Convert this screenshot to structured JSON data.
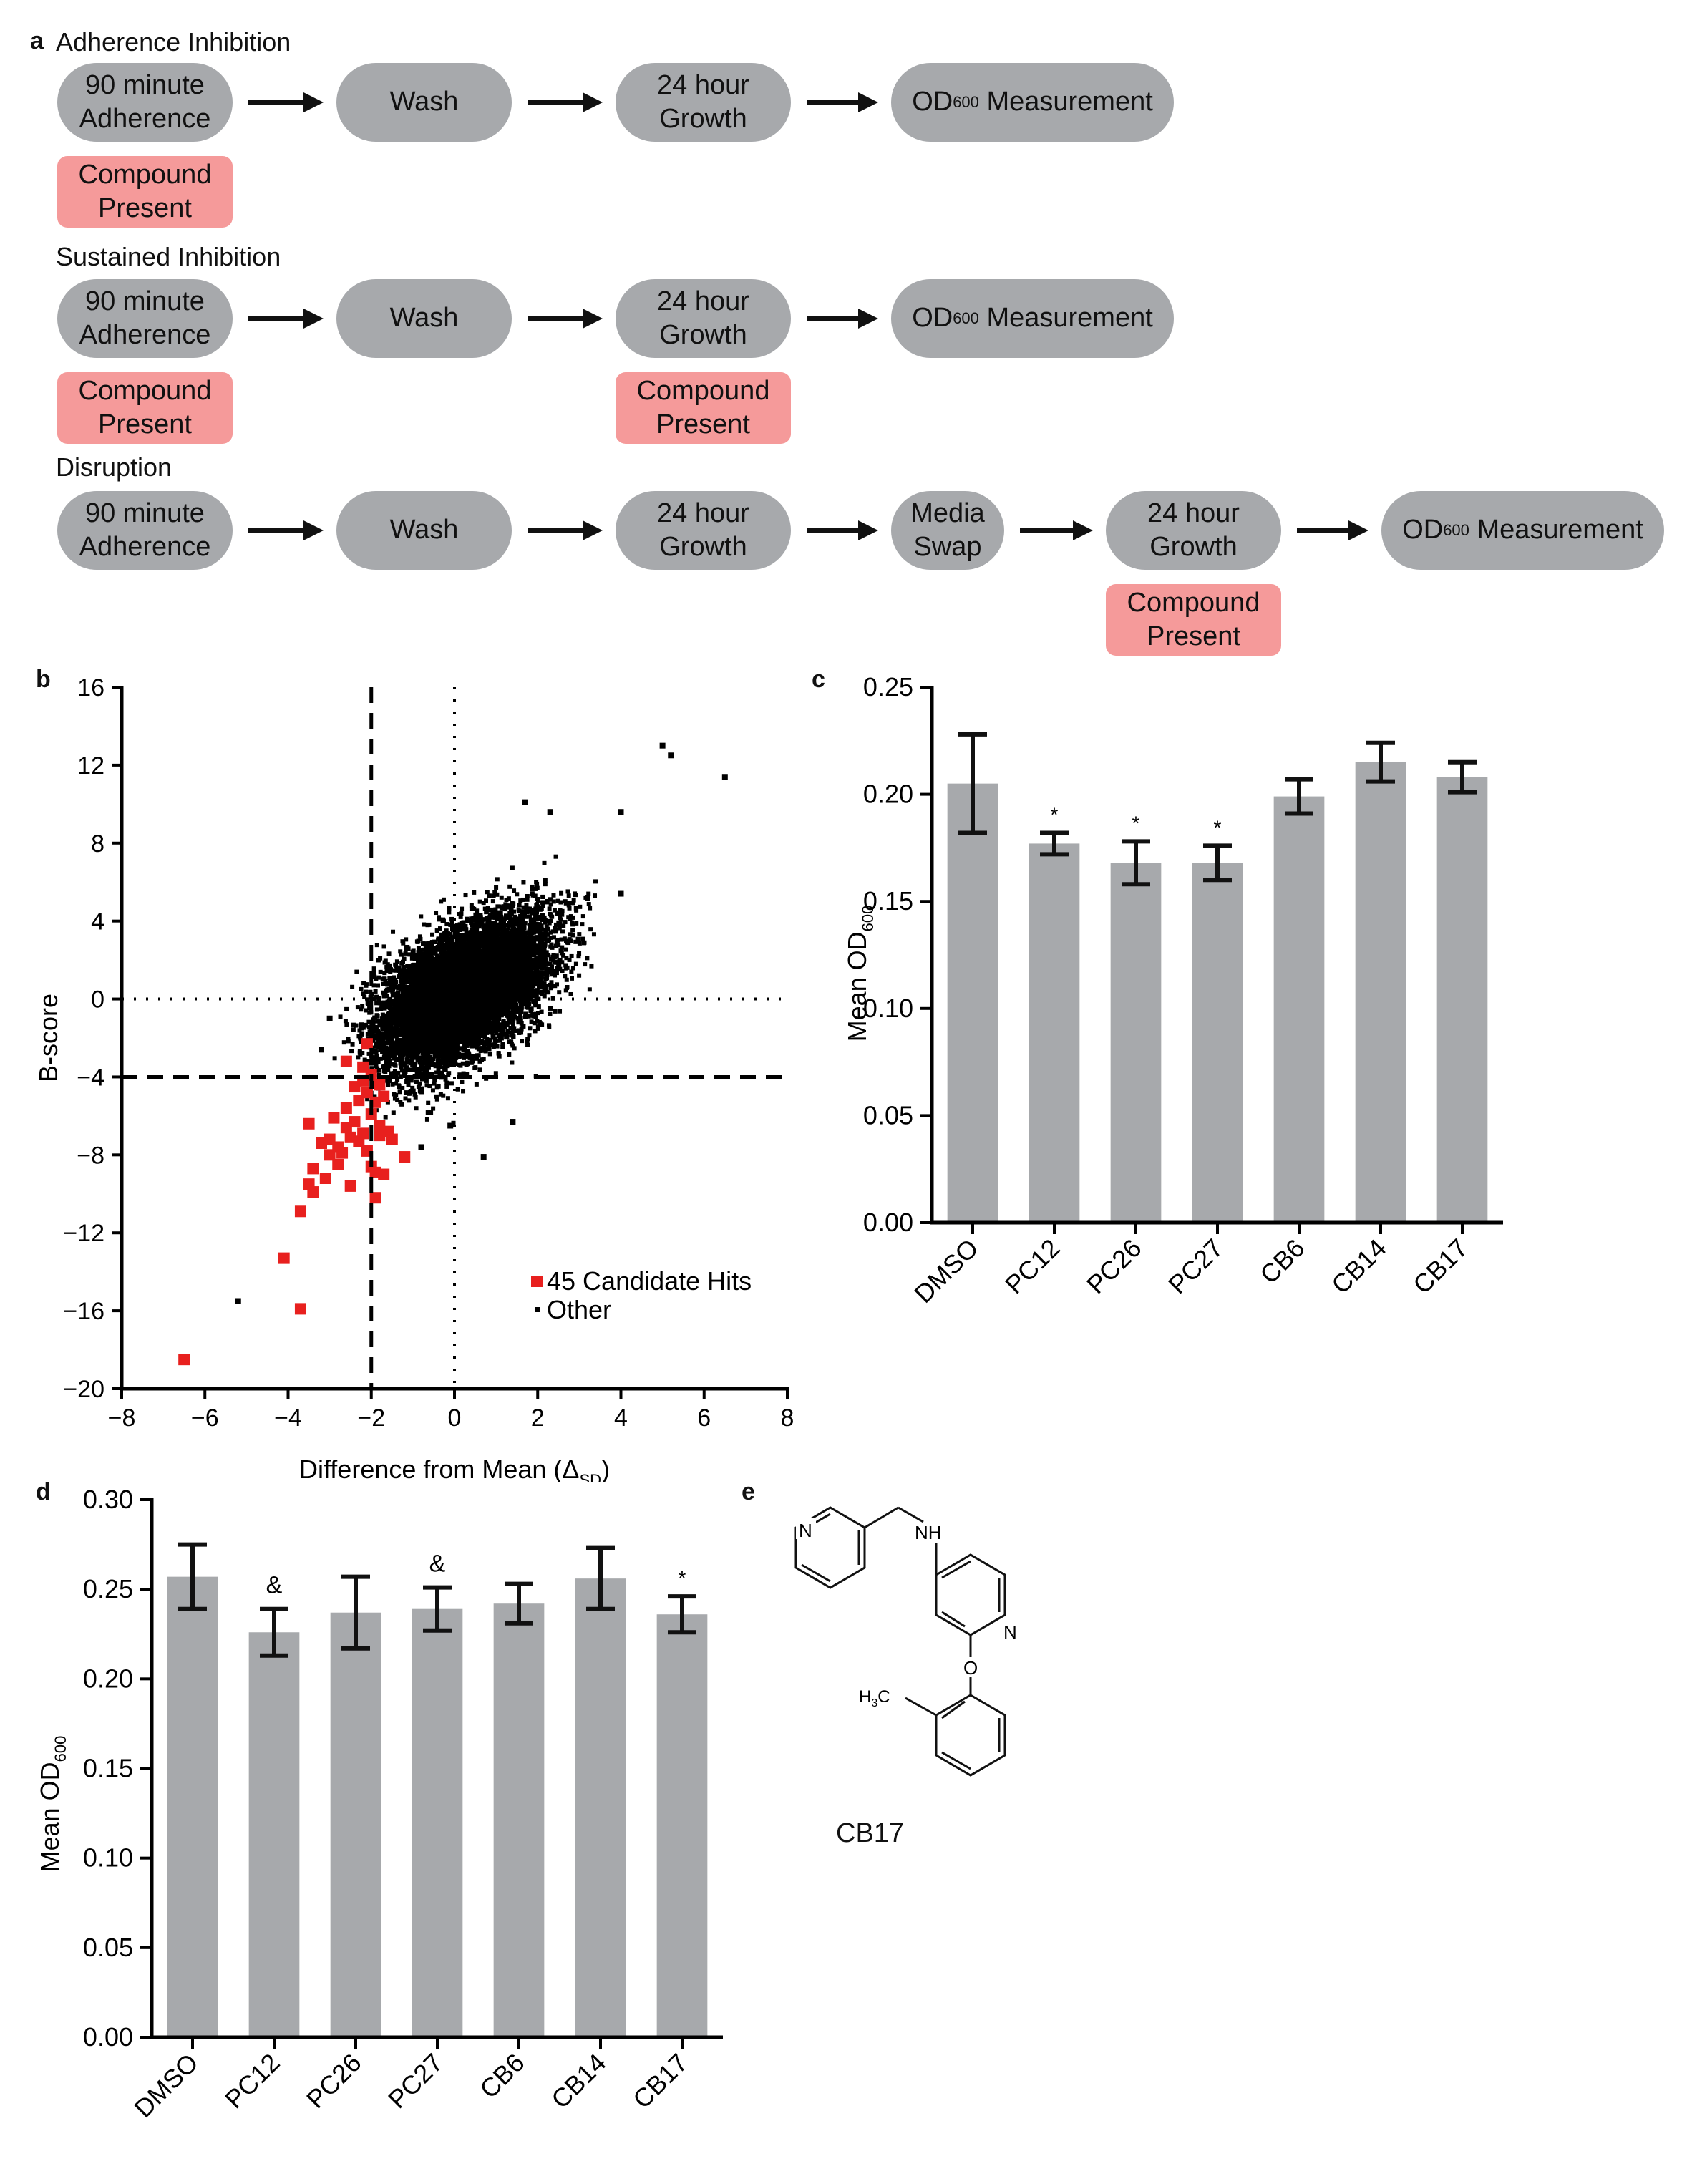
{
  "panel_letters": {
    "a": "a",
    "b": "b",
    "c": "c",
    "d": "d",
    "e": "e"
  },
  "workflow": {
    "rows": [
      {
        "title": "Adherence Inhibition",
        "steps": [
          "90 minute\nAdherence",
          "Wash",
          "24 hour\nGrowth",
          "OD600 Measurement"
        ],
        "compound_under": [
          0
        ]
      },
      {
        "title": "Sustained Inhibition",
        "steps": [
          "90 minute\nAdherence",
          "Wash",
          "24 hour\nGrowth",
          "OD600 Measurement"
        ],
        "compound_under": [
          0,
          2
        ]
      },
      {
        "title": "Disruption",
        "steps": [
          "90 minute\nAdherence",
          "Wash",
          "24 hour\nGrowth",
          "Media\nSwap",
          "24 hour\nGrowth",
          "OD600 Measurement"
        ],
        "compound_under": [
          4
        ]
      }
    ],
    "compound_label": "Compound\nPresent",
    "od_text": "OD",
    "od_sub": "600",
    "measurement_text": " Measurement"
  },
  "chart_data": [
    {
      "id": "b",
      "type": "scatter",
      "xlabel": "Difference from Mean (Δ",
      "xlabel_sub": "SD",
      "xlabel_end": ")",
      "ylabel": "B-score",
      "xlim": [
        -8,
        8
      ],
      "ylim": [
        -20,
        16
      ],
      "xticks": [
        "−8",
        "−6",
        "−4",
        "−2",
        "0",
        "2",
        "4",
        "6",
        "8"
      ],
      "yticks": [
        "16",
        "12",
        "8",
        "4",
        "0",
        "−4",
        "−8",
        "−12",
        "−16",
        "−20"
      ],
      "thresholds": {
        "x": -2,
        "y": -4
      },
      "legend": [
        "45 Candidate Hits",
        "Other"
      ],
      "series": [
        {
          "name": "45 Candidate Hits",
          "color": "#e8201e",
          "points": [
            [
              -6.5,
              -18.5
            ],
            [
              -4.1,
              -13.3
            ],
            [
              -3.7,
              -10.9
            ],
            [
              -3.7,
              -15.9
            ],
            [
              -3.5,
              -9.5
            ],
            [
              -3.4,
              -9.9
            ],
            [
              -3.5,
              -6.4
            ],
            [
              -3.4,
              -8.7
            ],
            [
              -3.2,
              -7.4
            ],
            [
              -3.1,
              -9.2
            ],
            [
              -3.0,
              -7.2
            ],
            [
              -3.0,
              -8.0
            ],
            [
              -2.9,
              -6.1
            ],
            [
              -2.8,
              -7.6
            ],
            [
              -2.8,
              -8.5
            ],
            [
              -2.7,
              -7.9
            ],
            [
              -2.6,
              -6.6
            ],
            [
              -2.6,
              -5.6
            ],
            [
              -2.5,
              -7.1
            ],
            [
              -2.5,
              -9.6
            ],
            [
              -2.4,
              -4.5
            ],
            [
              -2.4,
              -6.3
            ],
            [
              -2.3,
              -5.2
            ],
            [
              -2.3,
              -7.3
            ],
            [
              -2.2,
              -3.5
            ],
            [
              -2.2,
              -4.2
            ],
            [
              -2.2,
              -6.9
            ],
            [
              -2.1,
              -2.3
            ],
            [
              -2.1,
              -4.8
            ],
            [
              -2.1,
              -7.8
            ],
            [
              -2.0,
              -5.9
            ],
            [
              -2.0,
              -8.6
            ],
            [
              -2.0,
              -3.9
            ],
            [
              -1.9,
              -5.3
            ],
            [
              -1.9,
              -8.9
            ],
            [
              -1.9,
              -10.2
            ],
            [
              -1.8,
              -4.4
            ],
            [
              -1.8,
              -6.5
            ],
            [
              -1.8,
              -7.0
            ],
            [
              -1.7,
              -5.0
            ],
            [
              -1.7,
              -9.0
            ],
            [
              -1.6,
              -6.8
            ],
            [
              -1.5,
              -7.2
            ],
            [
              -2.6,
              -3.2
            ],
            [
              -1.2,
              -8.1
            ]
          ]
        },
        {
          "name": "Other",
          "color": "#000000",
          "outliers": [
            [
              -5.2,
              -15.5
            ],
            [
              5.0,
              13.0
            ],
            [
              5.2,
              12.5
            ],
            [
              6.5,
              11.4
            ],
            [
              4.0,
              9.6
            ],
            [
              1.7,
              10.1
            ],
            [
              2.3,
              9.6
            ],
            [
              3.2,
              5.2
            ],
            [
              4.0,
              5.4
            ],
            [
              -0.8,
              -7.6
            ],
            [
              -0.1,
              -6.5
            ],
            [
              0.7,
              -8.1
            ],
            [
              1.4,
              -6.3
            ],
            [
              -3.0,
              -1.0
            ],
            [
              -3.2,
              -2.6
            ]
          ],
          "cloud": {
            "center": [
              0.2,
              0.3
            ],
            "sd": [
              1.0,
              1.9
            ],
            "corr": 0.55,
            "n": 9000,
            "seed": 7
          }
        }
      ]
    },
    {
      "id": "c",
      "type": "bar",
      "ylabel": "Mean OD",
      "ylabel_sub": "600",
      "ylim": [
        0,
        0.25
      ],
      "yticks": [
        "0.25",
        "0.20",
        "0.15",
        "0.10",
        "0.05",
        "0.00"
      ],
      "ytick_values": [
        0.25,
        0.2,
        0.15,
        0.1,
        0.05,
        0.0
      ],
      "categories": [
        "DMSO",
        "PC12",
        "PC26",
        "PC27",
        "CB6",
        "CB14",
        "CB17"
      ],
      "values": [
        0.205,
        0.177,
        0.168,
        0.168,
        0.199,
        0.215,
        0.208
      ],
      "errors": [
        0.023,
        0.005,
        0.01,
        0.008,
        0.008,
        0.009,
        0.007
      ],
      "annotations": [
        "",
        "*",
        "*",
        "*",
        "",
        "",
        ""
      ],
      "bar_color": "#a7a9ac"
    },
    {
      "id": "d",
      "type": "bar",
      "ylabel": "Mean OD",
      "ylabel_sub": "600",
      "ylim": [
        0,
        0.3
      ],
      "yticks": [
        "0.30",
        "0.25",
        "0.20",
        "0.15",
        "0.10",
        "0.05",
        "0.00"
      ],
      "ytick_values": [
        0.3,
        0.25,
        0.2,
        0.15,
        0.1,
        0.05,
        0.0
      ],
      "categories": [
        "DMSO",
        "PC12",
        "PC26",
        "PC27",
        "CB6",
        "CB14",
        "CB17"
      ],
      "values": [
        0.257,
        0.226,
        0.237,
        0.239,
        0.242,
        0.256,
        0.236
      ],
      "errors": [
        0.018,
        0.013,
        0.02,
        0.012,
        0.011,
        0.017,
        0.01
      ],
      "annotations": [
        "",
        "&",
        "",
        "&",
        "",
        "",
        "*"
      ],
      "bar_color": "#a7a9ac"
    }
  ],
  "structure": {
    "name": "CB17",
    "atom_N1": "N",
    "atom_NH": "NH",
    "atom_N2": "N",
    "atom_O": "O",
    "atom_H3C": "H",
    "atom_H3C_sub": "3",
    "atom_H3C_end": "C"
  }
}
